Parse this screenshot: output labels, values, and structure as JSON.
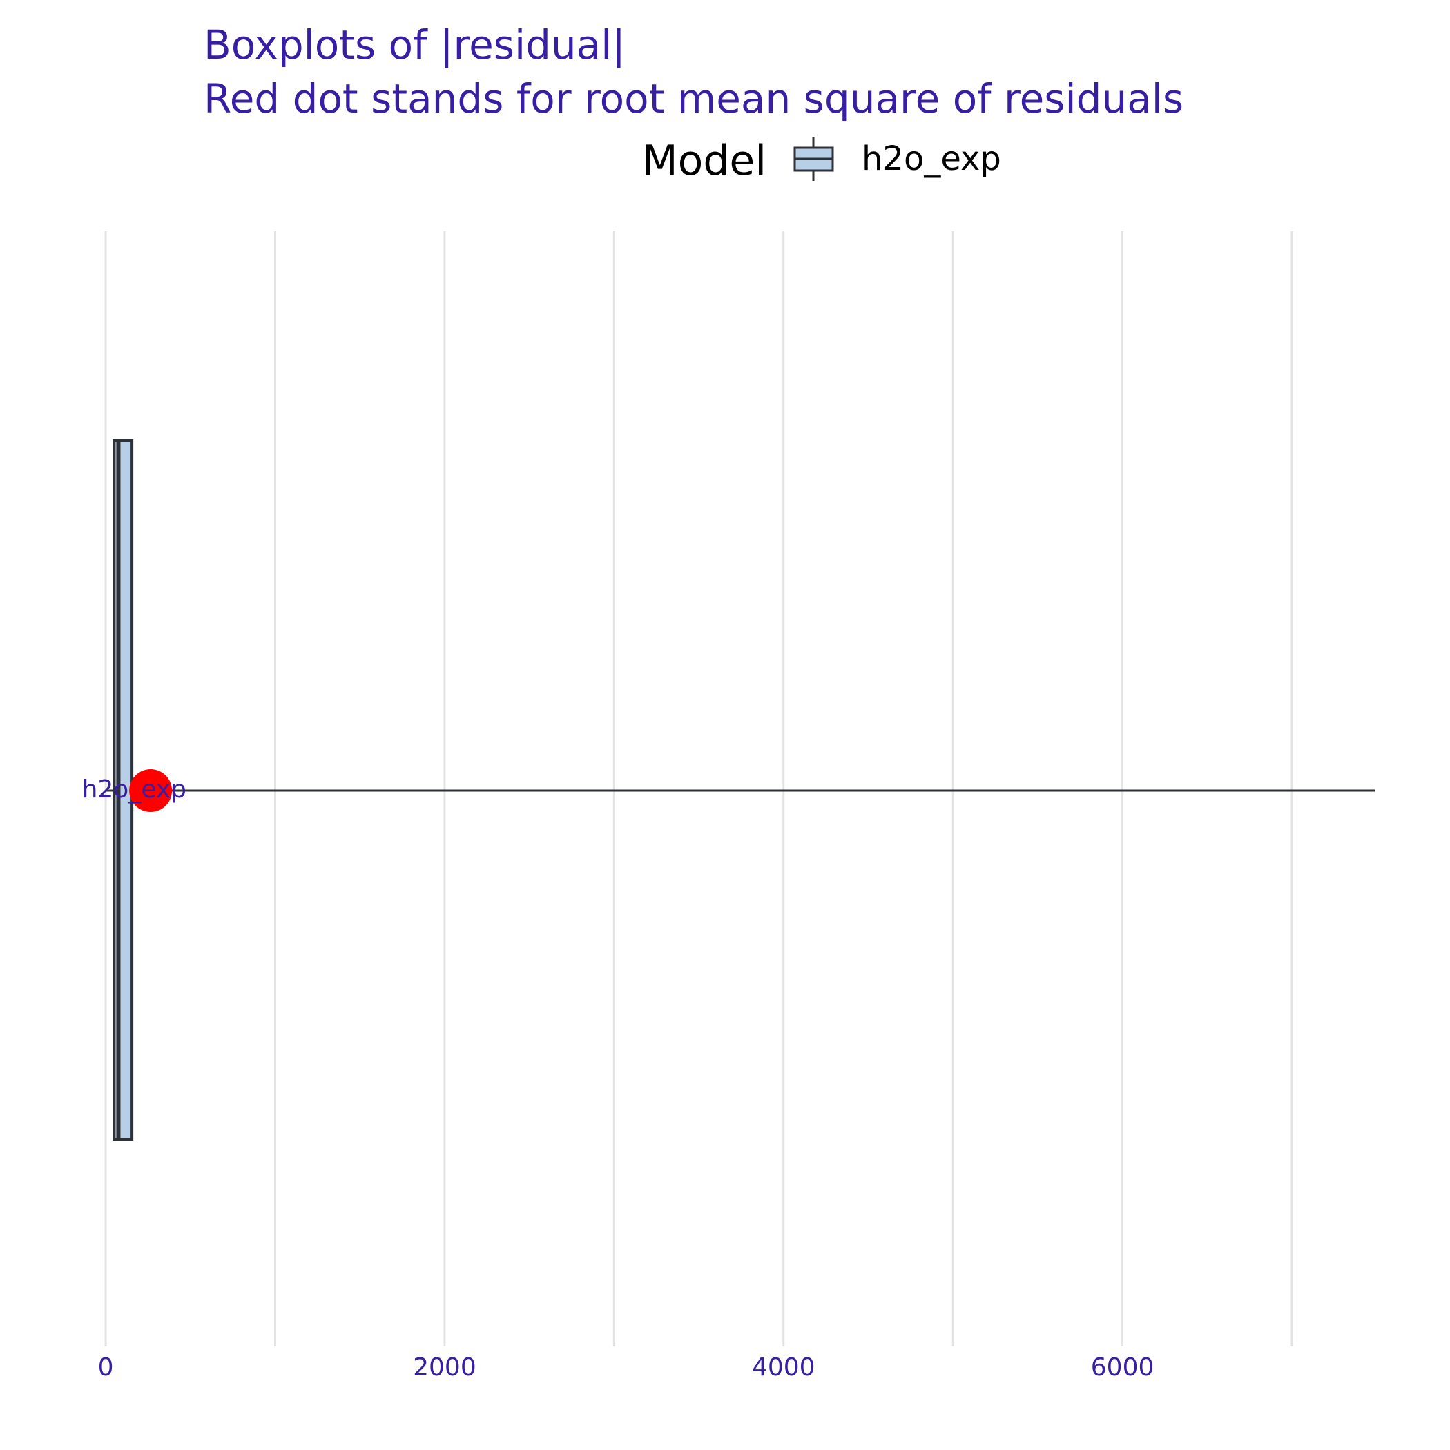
{
  "chart_data": {
    "type": "boxplot",
    "title": "Boxplots of |residual|",
    "subtitle": "Red dot stands for root mean square of residuals",
    "xlabel": "",
    "ylabel": "",
    "xlim": [
      -200,
      7550
    ],
    "x_ticks": [
      0,
      2000,
      4000,
      6000
    ],
    "x_gridlines": [
      0,
      1000,
      2000,
      3000,
      4000,
      5000,
      6000,
      7000
    ],
    "grid": true,
    "legend": {
      "title": "Model",
      "placement": "top",
      "entries": [
        "h2o_exp"
      ]
    },
    "series": [
      {
        "name": "h2o_exp",
        "whisker_low": 2,
        "q1": 50,
        "median": 75,
        "q3": 155,
        "whisker_high": 7490,
        "rms": 265,
        "box_color": "#b8cfe8",
        "rms_color": "#ff0000"
      }
    ],
    "colors": {
      "title": "#371ea3",
      "tick_labels": "#371ea3",
      "grid": "#e3e3e3",
      "outline": "#2e3238",
      "legend_text": "#000000"
    }
  }
}
